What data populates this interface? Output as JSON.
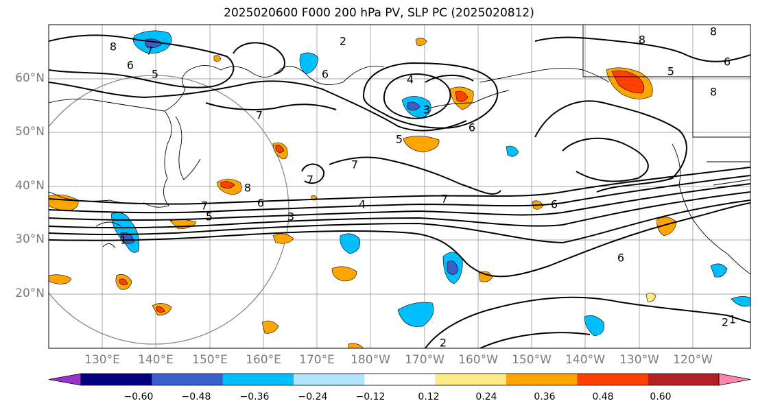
{
  "title": "2025020600 F000 200 hPa PV, SLP PC (2025020812)",
  "map": {
    "lat_labels": [
      "60°N",
      "50°N",
      "40°N",
      "30°N",
      "20°N"
    ],
    "lon_labels": [
      "130°E",
      "140°E",
      "150°E",
      "160°E",
      "170°E",
      "180°W",
      "170°W",
      "160°W",
      "150°W",
      "140°W",
      "130°W",
      "120°W"
    ],
    "contour_labels": [
      "8",
      "7",
      "6",
      "5",
      "7",
      "6",
      "5",
      "4",
      "3",
      "5",
      "6",
      "4",
      "3",
      "2",
      "6",
      "7",
      "7",
      "8",
      "7",
      "6",
      "8",
      "8",
      "6",
      "1",
      "2",
      "1",
      "2",
      "7",
      "6",
      "5",
      "8"
    ]
  },
  "colorbar": {
    "ticks": [
      "−0.60",
      "−0.48",
      "−0.36",
      "−0.24",
      "−0.12",
      "0.12",
      "0.24",
      "0.36",
      "0.48",
      "0.60"
    ],
    "colors": [
      "#9933cc",
      "#000080",
      "#3a5fcd",
      "#00bfff",
      "#b2e4ff",
      "#ffffff",
      "#ffea85",
      "#ffa500",
      "#ff4000",
      "#b22222",
      "#ff85b0"
    ]
  }
}
